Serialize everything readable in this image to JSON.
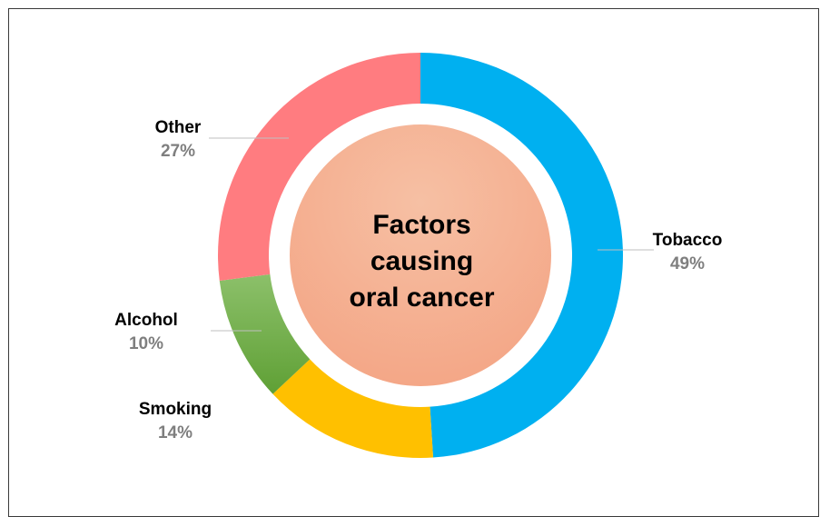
{
  "chart_data": {
    "type": "pie",
    "title_lines": [
      "Factors",
      "causing",
      "oral cancer"
    ],
    "slices": [
      {
        "label": "Tobacco",
        "value": 49,
        "value_label": "49%",
        "color": "#00B0F0"
      },
      {
        "label": "Smoking",
        "value": 14,
        "value_label": "14%",
        "color": "#FFC000"
      },
      {
        "label": "Alcohol",
        "value": 10,
        "value_label": "10%",
        "color": "#70AD47"
      },
      {
        "label": "Other",
        "value": 27,
        "value_label": "27%",
        "color": "#FF7C80"
      }
    ],
    "center_color": "#F4B08E"
  }
}
